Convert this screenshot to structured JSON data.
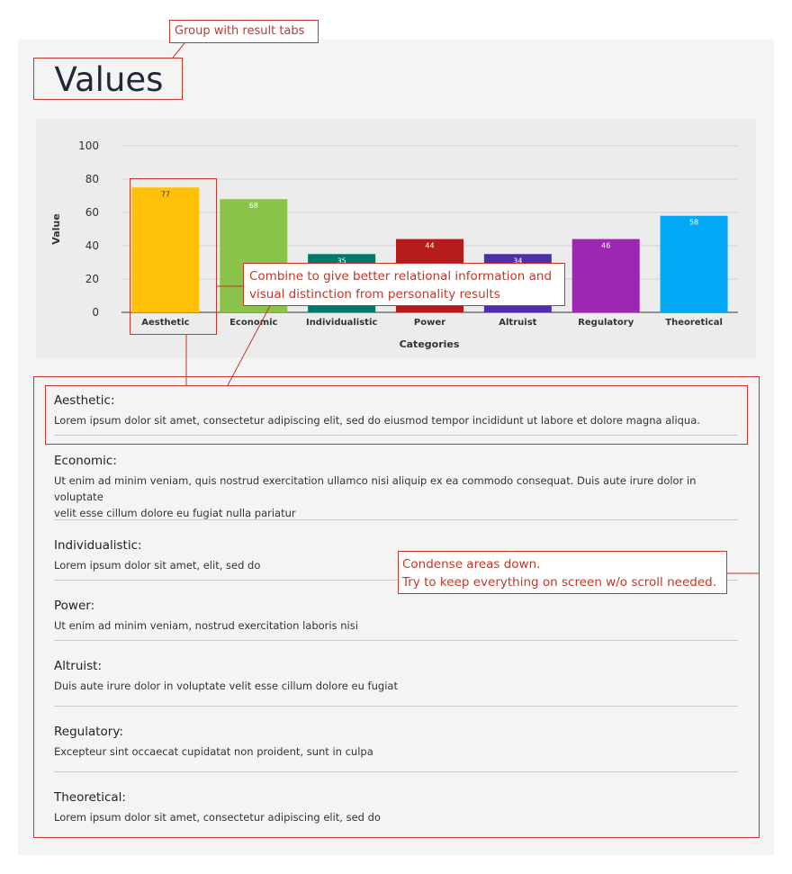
{
  "page": {
    "title": "Values"
  },
  "notes": {
    "group": "Group with result tabs",
    "combine_line1": "Combine to give better relational information and",
    "combine_line2": "visual distinction from personality results",
    "condense_line1": "Condense areas down.",
    "condense_line2": "Try to keep everything on screen w/o scroll needed."
  },
  "chart_data": {
    "type": "bar",
    "categories": [
      "Aesthetic",
      "Economic",
      "Individualistic",
      "Power",
      "Altruist",
      "Regulatory",
      "Theoretical"
    ],
    "values": [
      77,
      68,
      35,
      44,
      34,
      46,
      58
    ],
    "fill_levels": [
      75,
      68,
      35,
      44,
      35,
      44,
      58
    ],
    "colors": [
      "#ffc107",
      "#8bc34a",
      "#00796b",
      "#b71c1c",
      "#512da8",
      "#9c27b0",
      "#03a9f4"
    ],
    "xlabel": "Categories",
    "ylabel": "Value",
    "ylim": [
      0,
      100
    ],
    "yticks": [
      "0",
      "20",
      "40",
      "60",
      "80",
      "100"
    ],
    "grid": true
  },
  "descriptions": [
    {
      "title": "Aesthetic:",
      "text": "Lorem ipsum dolor sit amet, consectetur adipiscing elit, sed do eiusmod tempor incididunt ut labore et dolore magna aliqua."
    },
    {
      "title": "Economic:",
      "text_line1": "Ut enim ad minim veniam, quis nostrud exercitation ullamco nisi aliquip ex ea commodo consequat. Duis aute irure dolor in voluptate",
      "text_line2": "velit esse cillum dolore eu fugiat nulla pariatur"
    },
    {
      "title": "Individualistic:",
      "text": "Lorem ipsum dolor sit amet,  elit, sed do"
    },
    {
      "title": "Power:",
      "text": "Ut enim ad minim veniam, nostrud exercitation laboris nisi"
    },
    {
      "title": "Altruist:",
      "text": "Duis aute irure dolor in voluptate velit esse cillum dolore eu fugiat"
    },
    {
      "title": "Regulatory:",
      "text": "Excepteur sint occaecat cupidatat non proident, sunt in culpa"
    },
    {
      "title": "Theoretical:",
      "text": "Lorem ipsum dolor sit amet, consectetur adipiscing elit, sed do"
    }
  ]
}
